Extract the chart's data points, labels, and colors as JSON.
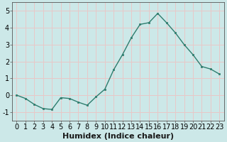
{
  "xlabel": "Humidex (Indice chaleur)",
  "background_color": "#cce8e8",
  "grid_color": "#e8c8c8",
  "line_color": "#2e7d6e",
  "marker_color": "#2e7d6e",
  "x": [
    0,
    1,
    2,
    3,
    4,
    5,
    6,
    7,
    8,
    9,
    10,
    11,
    12,
    13,
    14,
    15,
    16,
    17,
    18,
    19,
    20,
    21,
    22,
    23
  ],
  "y": [
    0.0,
    -0.2,
    -0.55,
    -0.8,
    -0.85,
    -0.15,
    -0.2,
    -0.42,
    -0.6,
    -0.1,
    0.35,
    1.5,
    2.4,
    3.4,
    4.2,
    4.3,
    4.85,
    4.3,
    3.7,
    3.0,
    2.4,
    1.7,
    1.55,
    1.25
  ],
  "ylim": [
    -1.5,
    5.5
  ],
  "xlim": [
    -0.5,
    23.5
  ],
  "yticks": [
    -1,
    0,
    1,
    2,
    3,
    4,
    5
  ],
  "xticks": [
    0,
    1,
    2,
    3,
    4,
    5,
    6,
    7,
    8,
    9,
    10,
    11,
    12,
    13,
    14,
    15,
    16,
    17,
    18,
    19,
    20,
    21,
    22,
    23
  ],
  "xtick_labels": [
    "0",
    "1",
    "2",
    "3",
    "4",
    "5",
    "6",
    "7",
    "8",
    "9",
    "10",
    "11",
    "12",
    "13",
    "14",
    "15",
    "16",
    "17",
    "18",
    "19",
    "20",
    "21",
    "22",
    "23"
  ],
  "xlabel_fontsize": 8,
  "tick_fontsize": 7
}
